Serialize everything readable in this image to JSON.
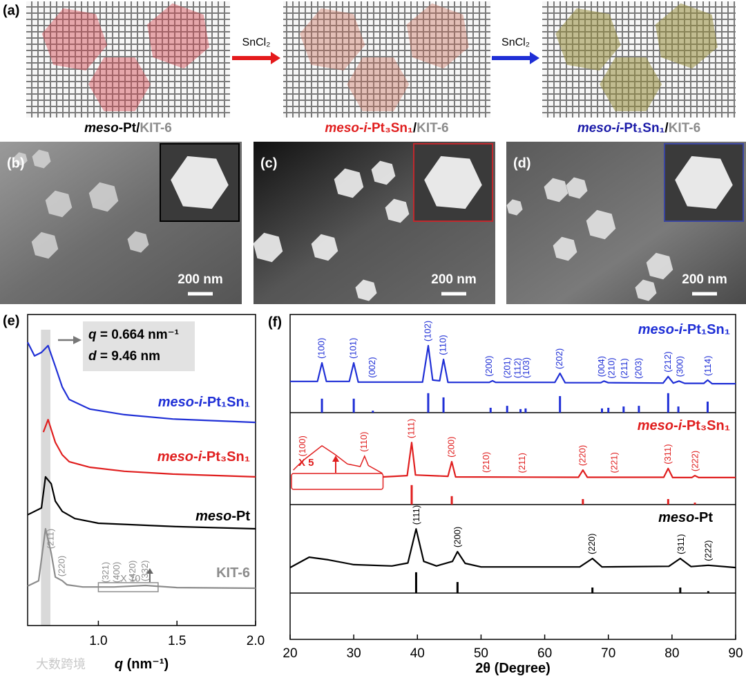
{
  "panels": {
    "a": {
      "label": "(a)",
      "captions": [
        [
          {
            "text": "meso-Pt",
            "color": "#000000"
          },
          {
            "text": "/",
            "color": "#000000"
          },
          {
            "text": "KIT-6",
            "color": "#8c8c8c"
          }
        ],
        [
          {
            "text": "meso-i-Pt₃Sn₁",
            "color": "#e01e1e"
          },
          {
            "text": "/",
            "color": "#000000"
          },
          {
            "text": "KIT-6",
            "color": "#8c8c8c"
          }
        ],
        [
          {
            "text": "meso-i-Pt₁Sn₁",
            "color": "#1a1aa8"
          },
          {
            "text": "/",
            "color": "#000000"
          },
          {
            "text": "KIT-6",
            "color": "#8c8c8c"
          }
        ]
      ],
      "arrows": [
        {
          "label": "SnCl₂",
          "color": "#e41a1c"
        },
        {
          "label": "SnCl₂",
          "color": "#1f2fd6"
        }
      ]
    },
    "b": {
      "label": "(b)",
      "scale_bar": "200 nm",
      "inset_color": "#000000"
    },
    "c": {
      "label": "(c)",
      "scale_bar": "200 nm",
      "inset_color": "#c0282d"
    },
    "d": {
      "label": "(d)",
      "scale_bar": "200 nm",
      "inset_color": "#3a45a0"
    },
    "watermark": "大数跨境"
  },
  "chart_data": [
    {
      "type": "line",
      "label": "(e)",
      "xlabel": "q (nm⁻¹)",
      "xlim": [
        0.55,
        2.0
      ],
      "ylim": [
        0,
        100
      ],
      "xticks": [
        {
          "value": 1.0,
          "label": "1.0"
        },
        1.5,
        {
          "value": 2.0,
          "label": "2.0"
        }
      ],
      "highlight": [
        0.635,
        0.695
      ],
      "highlight_color": "#d9d9d9",
      "annotations": [
        "q = 0.664 nm⁻¹",
        "d = 9.46 nm"
      ],
      "zoom_label": "X 10",
      "zoom_range": [
        1.0,
        1.38
      ],
      "series": [
        {
          "name": "meso-i-Pt₁Sn₁",
          "color": "#1f2fd6",
          "x": [
            0.55,
            0.594,
            0.638,
            0.68,
            0.726,
            0.77,
            0.814,
            0.945,
            1.165,
            1.473,
            2.0
          ],
          "values": [
            91.1,
            86.7,
            87.8,
            90,
            83.3,
            76.7,
            72.7,
            69.6,
            67.8,
            66.4,
            65.3
          ]
        },
        {
          "name": "meso-i-Pt₃Sn₁",
          "color": "#e01e1e",
          "x": [
            0.65,
            0.68,
            0.726,
            0.77,
            0.814,
            0.945,
            1.165,
            1.473,
            2.0
          ],
          "values": [
            62.2,
            66.2,
            58.9,
            54.9,
            52.7,
            50.9,
            49.6,
            48.7,
            47.8
          ]
        },
        {
          "name": "meso-Pt",
          "color": "#000000",
          "x": [
            0.55,
            0.638,
            0.664,
            0.7,
            0.726,
            0.77,
            0.85,
            1.0,
            1.5,
            2.0
          ],
          "values": [
            35.6,
            37.8,
            47.8,
            45.6,
            40,
            36.7,
            34.4,
            32.9,
            31.8,
            31.1
          ]
        },
        {
          "name": "KIT-6",
          "color": "#8c8c8c",
          "x": [
            0.55,
            0.62,
            0.664,
            0.7,
            0.726,
            0.77,
            0.8,
            0.9,
            1.1,
            1.3,
            1.5,
            2.0
          ],
          "values": [
            12.7,
            14.4,
            31.1,
            23.3,
            15.6,
            14.4,
            13.1,
            12.4,
            12.4,
            12.9,
            12.2,
            12
          ],
          "peaks": [
            {
              "label": "(211)",
              "x": 0.7
            },
            {
              "label": "(220)",
              "x": 0.77
            },
            {
              "label": "(321)",
              "x": 1.05
            },
            {
              "label": "(400)",
              "x": 1.12
            },
            {
              "label": "(420)",
              "x": 1.22
            },
            {
              "label": "(332)",
              "x": 1.3
            }
          ]
        }
      ]
    },
    {
      "type": "line",
      "label": "(f)",
      "xlabel": "2θ (Degree)",
      "xlim": [
        20,
        90
      ],
      "ylim": [
        0,
        100
      ],
      "xticks": [
        20,
        30,
        40,
        50,
        60,
        70,
        80,
        90
      ],
      "series": [
        {
          "name": "meso-i-Pt₁Sn₁",
          "color": "#1f2fd6",
          "x": [
            20,
            24.3,
            25.0,
            25.7,
            29.3,
            30.0,
            30.7,
            40.8,
            41.7,
            42.4,
            43.5,
            44.1,
            44.8,
            51.3,
            51.8,
            52.3,
            61.6,
            62.4,
            63.2,
            68.8,
            69.3,
            70,
            78.6,
            79.4,
            80.2,
            81.1,
            82,
            85.0,
            85.6,
            86.3,
            90
          ],
          "values": [
            79.4,
            79.4,
            85.1,
            79.4,
            79.4,
            85.1,
            79.2,
            79.2,
            90.4,
            79.8,
            79.6,
            86.2,
            79.1,
            79.1,
            79.6,
            79.1,
            79.1,
            81.9,
            79.0,
            79.0,
            79.5,
            79.0,
            78.9,
            80.9,
            78.9,
            79.5,
            78.8,
            78.8,
            79.8,
            78.7,
            78.7
          ],
          "peaks": [
            {
              "label": "(100)",
              "x": 25
            },
            {
              "label": "(101)",
              "x": 30
            },
            {
              "label": "(002)",
              "x": 33
            },
            {
              "label": "(102)",
              "x": 41.7
            },
            {
              "label": "(110)",
              "x": 44.1
            },
            {
              "label": "(200)",
              "x": 51.3
            },
            {
              "label": "(201)",
              "x": 54.2
            },
            {
              "label": "(112)",
              "x": 55.8
            },
            {
              "label": "(103)",
              "x": 57.2
            },
            {
              "label": "(202)",
              "x": 62.4
            },
            {
              "label": "(004)",
              "x": 69
            },
            {
              "label": "(210)",
              "x": 70.6
            },
            {
              "label": "(211)",
              "x": 72.6
            },
            {
              "label": "(203)",
              "x": 74.8
            },
            {
              "label": "(212)",
              "x": 79.4
            },
            {
              "label": "(300)",
              "x": 81.3
            },
            {
              "label": "(114)",
              "x": 85.7
            }
          ],
          "reference": {
            "x": [
              25.0,
              30.0,
              33.0,
              41.7,
              44.1,
              51.5,
              54.1,
              56.2,
              57.0,
              62.4,
              69.0,
              70.0,
              72.4,
              74.8,
              79.4,
              81.0,
              85.6
            ],
            "values": [
              4.3,
              4.3,
              0.6,
              6.0,
              4.7,
              1.5,
              2.1,
              1.1,
              1.3,
              5.1,
              1.3,
              1.5,
              1.9,
              2.1,
              6.0,
              1.9,
              3.4
            ]
          }
        },
        {
          "name": "meso-i-Pt₃Sn₁",
          "color": "#e01e1e",
          "x": [
            34.6,
            38.4,
            39.1,
            39.7,
            44.8,
            45.4,
            46.0,
            65.3,
            66.0,
            66.7,
            78.7,
            79.4,
            80.1,
            83.1,
            83.6,
            84.2,
            90
          ],
          "values": [
            50.0,
            50.4,
            60.6,
            50.6,
            50.2,
            54.7,
            50.0,
            49.9,
            52.1,
            49.9,
            49.9,
            52.6,
            49.8,
            49.8,
            50.4,
            49.8,
            49.8
          ],
          "peaks": [
            {
              "label": "(111)",
              "x": 39.1
            },
            {
              "label": "(200)",
              "x": 45.4
            },
            {
              "label": "(210)",
              "x": 50.9
            },
            {
              "label": "(211)",
              "x": 56.5
            },
            {
              "label": "(220)",
              "x": 66
            },
            {
              "label": "(221)",
              "x": 71
            },
            {
              "label": "(311)",
              "x": 79.4
            },
            {
              "label": "(222)",
              "x": 83.7
            }
          ],
          "reference": {
            "x": [
              39.1,
              45.4,
              66.0,
              79.4,
              83.6
            ],
            "values": [
              6.0,
              2.6,
              1.7,
              1.7,
              0.6
            ]
          },
          "inset": {
            "zoom_label": "X 5",
            "x": [
              20.5,
              22,
              25,
              27,
              29,
              31,
              31.7,
              32.3,
              34.5
            ],
            "values": [
              52.1,
              55,
              59.6,
              57,
              54,
              53.2,
              56.4,
              53.5,
              51.1
            ],
            "peaks": [
              {
                "label": "(100)",
                "x": 22
              },
              {
                "label": "(110)",
                "x": 31.7
              }
            ]
          }
        },
        {
          "name": "meso-Pt",
          "color": "#000000",
          "x": [
            20,
            23,
            26,
            30,
            36,
            38.5,
            39.8,
            41,
            43,
            45.5,
            46.3,
            47.5,
            50,
            65.5,
            67.5,
            69,
            79.5,
            81.3,
            83,
            85.7,
            90
          ],
          "values": [
            22.1,
            25.3,
            24.5,
            23.0,
            22.6,
            23.5,
            34.0,
            24,
            22.6,
            24,
            27.0,
            23.4,
            22.3,
            22.3,
            24.9,
            22.3,
            22.5,
            24.9,
            22.4,
            22.8,
            22.1
          ],
          "peaks": [
            {
              "label": "(111)",
              "x": 39.9
            },
            {
              "label": "(200)",
              "x": 46.4
            },
            {
              "label": "(220)",
              "x": 67.5
            },
            {
              "label": "(311)",
              "x": 81.5
            },
            {
              "label": "(222)",
              "x": 85.8
            }
          ],
          "reference": {
            "x": [
              39.8,
              46.3,
              67.5,
              81.3,
              85.7
            ],
            "values": [
              6.4,
              3.4,
              1.7,
              1.7,
              0.6
            ]
          }
        }
      ]
    }
  ]
}
